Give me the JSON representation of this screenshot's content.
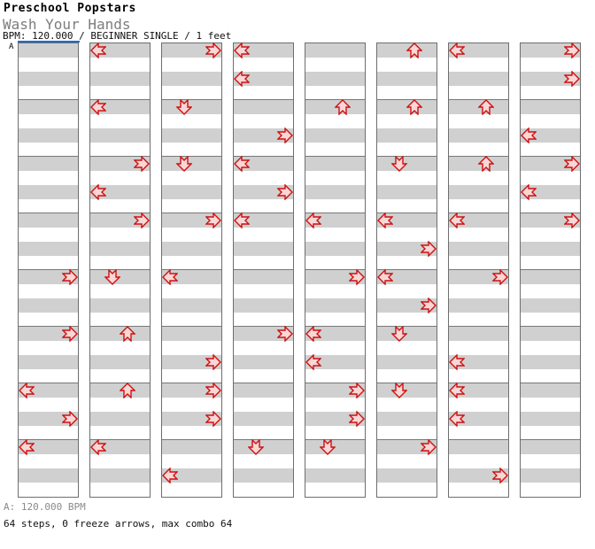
{
  "header": {
    "title": "Preschool Popstars",
    "song": "Wash Your Hands",
    "meta": "BPM: 120.000 / BEGINNER SINGLE / 1 feet"
  },
  "bpm_marker": {
    "label": "A"
  },
  "footer": {
    "bpm_line": "A: 120.000 BPM",
    "summary": "64 steps, 0 freeze arrows, max combo 64"
  },
  "colors": {
    "band_gray": "#d0d0d0",
    "beat_line": "#787878",
    "measure_border": "#6e6e6e",
    "bpm_marker_blue": "#1c6bd0",
    "arrow_fill": "#fbd6d6",
    "arrow_stroke": "#cc1111"
  },
  "chart": {
    "rows_per_measure": 32,
    "measures": [
      {
        "notes": [
          {
            "row": 16,
            "dir": "R"
          },
          {
            "row": 20,
            "dir": "R"
          },
          {
            "row": 24,
            "dir": "L"
          },
          {
            "row": 26,
            "dir": "R"
          },
          {
            "row": 28,
            "dir": "L"
          }
        ]
      },
      {
        "notes": [
          {
            "row": 0,
            "dir": "L"
          },
          {
            "row": 4,
            "dir": "L"
          },
          {
            "row": 8,
            "dir": "R"
          },
          {
            "row": 10,
            "dir": "L"
          },
          {
            "row": 12,
            "dir": "R"
          },
          {
            "row": 16,
            "dir": "D"
          },
          {
            "row": 20,
            "dir": "U"
          },
          {
            "row": 24,
            "dir": "U"
          },
          {
            "row": 28,
            "dir": "L"
          }
        ]
      },
      {
        "notes": [
          {
            "row": 0,
            "dir": "R"
          },
          {
            "row": 4,
            "dir": "D"
          },
          {
            "row": 8,
            "dir": "D"
          },
          {
            "row": 12,
            "dir": "R"
          },
          {
            "row": 16,
            "dir": "L"
          },
          {
            "row": 22,
            "dir": "R"
          },
          {
            "row": 24,
            "dir": "R"
          },
          {
            "row": 26,
            "dir": "R"
          },
          {
            "row": 30,
            "dir": "L"
          }
        ]
      },
      {
        "notes": [
          {
            "row": 0,
            "dir": "L"
          },
          {
            "row": 2,
            "dir": "L"
          },
          {
            "row": 6,
            "dir": "R"
          },
          {
            "row": 8,
            "dir": "L"
          },
          {
            "row": 10,
            "dir": "R"
          },
          {
            "row": 12,
            "dir": "L"
          },
          {
            "row": 20,
            "dir": "R"
          },
          {
            "row": 28,
            "dir": "D"
          }
        ]
      },
      {
        "notes": [
          {
            "row": 4,
            "dir": "U"
          },
          {
            "row": 12,
            "dir": "L"
          },
          {
            "row": 16,
            "dir": "R"
          },
          {
            "row": 20,
            "dir": "L"
          },
          {
            "row": 22,
            "dir": "L"
          },
          {
            "row": 24,
            "dir": "R"
          },
          {
            "row": 26,
            "dir": "R"
          },
          {
            "row": 28,
            "dir": "D"
          }
        ]
      },
      {
        "notes": [
          {
            "row": 0,
            "dir": "U"
          },
          {
            "row": 4,
            "dir": "U"
          },
          {
            "row": 8,
            "dir": "D"
          },
          {
            "row": 12,
            "dir": "L"
          },
          {
            "row": 14,
            "dir": "R"
          },
          {
            "row": 16,
            "dir": "L"
          },
          {
            "row": 18,
            "dir": "R"
          },
          {
            "row": 20,
            "dir": "D"
          },
          {
            "row": 24,
            "dir": "D"
          },
          {
            "row": 28,
            "dir": "R"
          }
        ]
      },
      {
        "notes": [
          {
            "row": 0,
            "dir": "L"
          },
          {
            "row": 4,
            "dir": "U"
          },
          {
            "row": 8,
            "dir": "U"
          },
          {
            "row": 12,
            "dir": "L"
          },
          {
            "row": 16,
            "dir": "R"
          },
          {
            "row": 22,
            "dir": "L"
          },
          {
            "row": 24,
            "dir": "L"
          },
          {
            "row": 26,
            "dir": "L"
          },
          {
            "row": 30,
            "dir": "R"
          }
        ]
      },
      {
        "notes": [
          {
            "row": 0,
            "dir": "R"
          },
          {
            "row": 2,
            "dir": "R"
          },
          {
            "row": 6,
            "dir": "L"
          },
          {
            "row": 8,
            "dir": "R"
          },
          {
            "row": 10,
            "dir": "L"
          },
          {
            "row": 12,
            "dir": "R"
          }
        ]
      }
    ]
  }
}
